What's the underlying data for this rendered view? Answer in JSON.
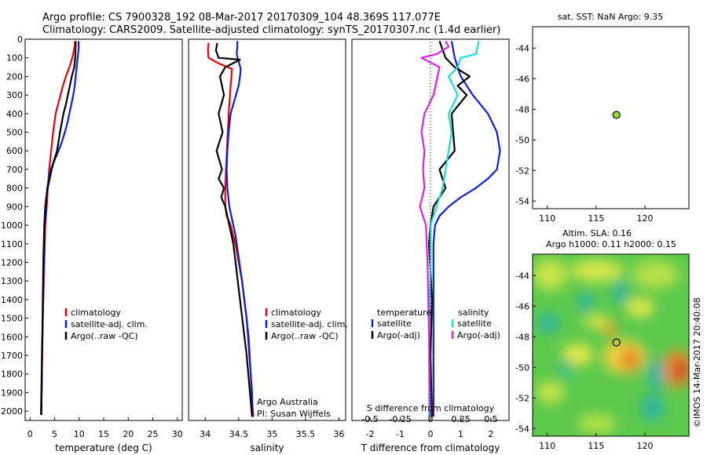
{
  "header": {
    "line1": "Argo profile: CS 7900328_192 08-Mar-2017 20170309_104 48.369S 117.077E",
    "line2": "Climatology: CARS2009. Satellite-adjusted climatology: synTS_20170307.nc (1.4d earlier)"
  },
  "credit": "©IMOS 14-Mar-2017 20:40:08",
  "colors": {
    "climatology": "#e8000b",
    "satellite": "#0a1fd6",
    "argo": "#000000",
    "salinity_satellite": "#18dede",
    "salinity_argo": "#e020e0",
    "float_marker": "#8ee02a"
  },
  "chart_data": [
    {
      "id": "temperature",
      "type": "line",
      "xlabel": "temperature (deg C)",
      "xlim": [
        -1,
        31
      ],
      "ylim": [
        0,
        2050
      ],
      "xticks": [
        0,
        5,
        10,
        15,
        20,
        25,
        30
      ],
      "yticks": [
        0,
        100,
        200,
        300,
        400,
        500,
        600,
        700,
        800,
        900,
        1000,
        1100,
        1200,
        1300,
        1400,
        1500,
        1600,
        1700,
        1800,
        1900,
        2000
      ],
      "legend": [
        "climatology",
        "satellite-adj. clim.",
        "Argo(..raw -QC)"
      ],
      "series": [
        {
          "name": "climatology",
          "color": "#e8000b",
          "x": [
            9.2,
            9.0,
            8.6,
            8.0,
            7.3,
            6.7,
            6.2,
            5.7,
            5.2,
            4.7,
            4.3,
            3.9,
            3.6,
            3.4,
            3.1,
            2.9,
            2.8,
            2.7,
            2.6,
            2.5,
            2.4,
            2.3,
            2.2
          ],
          "y": [
            10,
            50,
            100,
            150,
            200,
            250,
            300,
            350,
            400,
            500,
            600,
            700,
            800,
            900,
            1000,
            1200,
            1300,
            1400,
            1500,
            1600,
            1700,
            1900,
            2020
          ]
        },
        {
          "name": "satellite-adj. clim.",
          "color": "#0a1fd6",
          "x": [
            9.9,
            9.9,
            9.7,
            9.5,
            9.3,
            9.1,
            8.8,
            8.4,
            8.0,
            7.6,
            7.1,
            6.5,
            5.8,
            5.0,
            4.2,
            3.5,
            3.0,
            2.8,
            2.6,
            2.4,
            2.3
          ],
          "y": [
            10,
            50,
            100,
            150,
            200,
            250,
            300,
            350,
            400,
            450,
            500,
            550,
            600,
            650,
            700,
            800,
            1000,
            1200,
            1500,
            1800,
            2020
          ]
        },
        {
          "name": "Argo(..raw -QC)",
          "color": "#000000",
          "x": [
            9.3,
            9.2,
            9.0,
            8.5,
            8.1,
            7.7,
            7.3,
            6.8,
            6.1,
            5.5,
            4.9,
            4.4,
            4.0,
            3.6,
            3.3,
            3.1,
            2.9,
            2.7,
            2.6,
            2.5,
            2.4,
            2.3
          ],
          "y": [
            10,
            100,
            150,
            200,
            250,
            300,
            350,
            400,
            500,
            600,
            650,
            700,
            750,
            800,
            850,
            900,
            1000,
            1200,
            1400,
            1600,
            1800,
            2020
          ]
        }
      ]
    },
    {
      "id": "salinity",
      "type": "line",
      "xlabel": "salinity",
      "xlim": [
        33.75,
        36.1
      ],
      "ylim": [
        0,
        2050
      ],
      "xticks": [
        34,
        34.5,
        35,
        35.5,
        36
      ],
      "legend": [
        "climatology",
        "satellite-adj. clim.",
        "Argo(..raw -QC)"
      ],
      "annotation": [
        "Argo Australia",
        "PI: Susan Wijffels"
      ],
      "series": [
        {
          "name": "climatology",
          "color": "#e8000b",
          "x": [
            34.05,
            34.04,
            34.05,
            34.2,
            34.4,
            34.38,
            34.35,
            34.33,
            34.31,
            34.3,
            34.3,
            34.32,
            34.38,
            34.45,
            34.55,
            34.65,
            34.68,
            34.7,
            34.72
          ],
          "y": [
            20,
            60,
            100,
            130,
            160,
            250,
            400,
            550,
            700,
            800,
            900,
            950,
            1000,
            1100,
            1300,
            1600,
            1800,
            1950,
            2030
          ]
        },
        {
          "name": "satellite-adj. clim.",
          "color": "#0a1fd6",
          "x": [
            34.48,
            34.48,
            34.47,
            34.5,
            34.53,
            34.52,
            34.5,
            34.46,
            34.42,
            34.38,
            34.35,
            34.33,
            34.32,
            34.33,
            34.36,
            34.45,
            34.55,
            34.62,
            34.66,
            34.7,
            34.71
          ],
          "y": [
            10,
            40,
            80,
            120,
            160,
            200,
            250,
            300,
            350,
            400,
            500,
            600,
            700,
            800,
            900,
            1050,
            1300,
            1500,
            1700,
            1900,
            2030
          ]
        },
        {
          "name": "Argo(..raw -QC)",
          "color": "#000000",
          "x": [
            34.18,
            34.16,
            34.2,
            34.52,
            34.3,
            34.22,
            34.28,
            34.2,
            34.26,
            34.17,
            34.25,
            34.2,
            34.28,
            34.24,
            34.3,
            34.42,
            34.52,
            34.62,
            34.7
          ],
          "y": [
            20,
            60,
            100,
            110,
            150,
            200,
            300,
            400,
            500,
            600,
            700,
            750,
            800,
            850,
            900,
            1100,
            1400,
            1700,
            2030
          ]
        }
      ]
    },
    {
      "id": "difference",
      "type": "line",
      "xlabel": "T difference from climatology",
      "xlabel2": "S difference from climatology",
      "xlim": [
        -2.6,
        2.6
      ],
      "ylim": [
        0,
        2050
      ],
      "xticks": [
        -2,
        -1,
        0,
        1,
        2
      ],
      "xticks2": [
        "-0.5",
        "-0.25",
        "0",
        "0.25",
        "0.5"
      ],
      "legend_temperature_title": "temperature",
      "legend_salinity_title": "salinity",
      "legend": [
        "satellite",
        "Argo(-adj)",
        "satellite",
        "Argo(-adj)"
      ],
      "series": [
        {
          "name": "temperature satellite",
          "color": "#0a1fd6",
          "x": [
            0.7,
            0.8,
            1.0,
            1.4,
            1.9,
            2.2,
            2.3,
            2.2,
            1.9,
            1.5,
            1.0,
            0.6,
            0.3,
            0.15,
            0.1,
            0.1,
            0.1,
            0.1
          ],
          "y": [
            10,
            100,
            200,
            300,
            400,
            500,
            600,
            700,
            750,
            800,
            850,
            900,
            950,
            1000,
            1100,
            1400,
            1700,
            2030
          ]
        },
        {
          "name": "temperature Argo(-adj)",
          "color": "#000000",
          "x": [
            0.3,
            0.5,
            0.8,
            1.3,
            0.9,
            1.2,
            0.7,
            0.8,
            0.3,
            0.5,
            0.1,
            0.0,
            -0.05,
            0.05,
            0.0,
            0.05
          ],
          "y": [
            10,
            100,
            150,
            200,
            250,
            300,
            400,
            600,
            700,
            800,
            900,
            1000,
            1100,
            1400,
            1700,
            2030
          ]
        },
        {
          "name": "salinity satellite",
          "color": "#18dede",
          "x": [
            1.6,
            1.5,
            1.0,
            0.9,
            0.6,
            0.9,
            0.6,
            0.7,
            0.6,
            0.5,
            0.4,
            0.2,
            0.0,
            0.0,
            -0.05,
            -0.05
          ],
          "y": [
            10,
            80,
            100,
            150,
            200,
            300,
            400,
            500,
            600,
            700,
            800,
            900,
            1000,
            1200,
            1600,
            2030
          ]
        },
        {
          "name": "salinity Argo(-adj)",
          "color": "#e020e0",
          "x": [
            0.5,
            0.6,
            0.2,
            -0.3,
            0.3,
            0.1,
            -0.2,
            -0.3,
            -0.2,
            -0.25,
            -0.2,
            -0.35,
            -0.15,
            -0.1,
            -0.05,
            0.0
          ],
          "y": [
            10,
            40,
            80,
            100,
            150,
            300,
            400,
            500,
            600,
            700,
            800,
            900,
            1000,
            1200,
            1600,
            2030
          ]
        }
      ]
    },
    {
      "id": "sst-map",
      "type": "scatter",
      "title": "sat. SST: NaN Argo: 9.35",
      "xlim": [
        108.5,
        124.5
      ],
      "ylim": [
        -54.5,
        -42.6
      ],
      "xticks": [
        110,
        115,
        120
      ],
      "yticks": [
        -44,
        -46,
        -48,
        -50,
        -52,
        -54
      ],
      "points": [
        {
          "x": 117.077,
          "y": -48.369
        }
      ]
    },
    {
      "id": "sla-map",
      "type": "heatmap",
      "title": "Altim. SLA: 0.16",
      "subtitle": "Argo h1000: 0.11 h2000: 0.15",
      "xlim": [
        108.5,
        124.5
      ],
      "ylim": [
        -54.5,
        -42.6
      ],
      "xticks": [
        110,
        115,
        120
      ],
      "yticks": [
        -44,
        -46,
        -48,
        -50,
        -52,
        -54
      ],
      "points": [
        {
          "x": 117.077,
          "y": -48.369
        }
      ]
    }
  ]
}
